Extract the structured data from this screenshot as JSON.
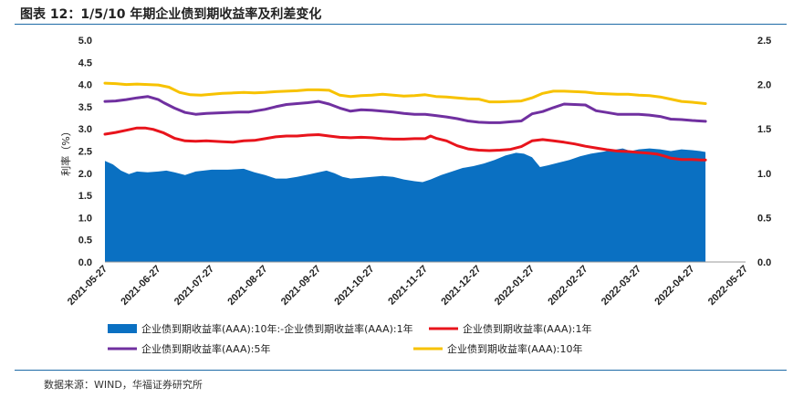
{
  "header": {
    "title": "图表 12：1/5/10 年期企业债到期收益率及利差变化"
  },
  "footer": {
    "source": "数据来源：WIND，华福证券研究所"
  },
  "colors": {
    "spread": "#0a70c2",
    "y1": "#e8141c",
    "y5": "#7030a0",
    "y10": "#f7c200",
    "rule": "#1d6aa6"
  },
  "chart_data": {
    "type": "area+line",
    "title": "1/5/10 年期企业债到期收益率及利差变化",
    "ylabel": "利率（%）",
    "ylim": [
      0,
      5
    ],
    "y_ticks": [
      "0.0",
      "0.5",
      "1.0",
      "1.5",
      "2.0",
      "2.5",
      "3.0",
      "3.5",
      "4.0",
      "4.5",
      "5.0"
    ],
    "y2lim": [
      0,
      2.5
    ],
    "y2_ticks": [
      "0.0",
      "0.5",
      "1.0",
      "1.5",
      "2.0",
      "2.5"
    ],
    "x_tick_labels": [
      "2021-05-27",
      "2021-06-27",
      "2021-07-27",
      "2021-08-27",
      "2021-09-27",
      "2021-10-27",
      "2021-11-27",
      "2021-12-27",
      "2022-01-27",
      "2022-02-27",
      "2022-03-27",
      "2022-04-27",
      "2022-05-27"
    ],
    "legend_position": "bottom",
    "series": [
      {
        "name": "企业债到期收益率(AAA):10年:-企业债到期收益率(AAA):1年",
        "type": "area",
        "axis": "right",
        "color": "#0a70c2",
        "points": [
          [
            0,
            1.14
          ],
          [
            0.15,
            1.1
          ],
          [
            0.3,
            1.03
          ],
          [
            0.45,
            0.99
          ],
          [
            0.6,
            1.02
          ],
          [
            0.8,
            1.01
          ],
          [
            1.0,
            1.02
          ],
          [
            1.15,
            1.03
          ],
          [
            1.3,
            1.01
          ],
          [
            1.5,
            0.98
          ],
          [
            1.7,
            1.02
          ],
          [
            2.0,
            1.04
          ],
          [
            2.3,
            1.04
          ],
          [
            2.6,
            1.05
          ],
          [
            2.8,
            1.01
          ],
          [
            3.0,
            0.98
          ],
          [
            3.2,
            0.94
          ],
          [
            3.4,
            0.94
          ],
          [
            3.6,
            0.96
          ],
          [
            3.85,
            0.99
          ],
          [
            4.0,
            1.01
          ],
          [
            4.15,
            1.03
          ],
          [
            4.3,
            1.0
          ],
          [
            4.45,
            0.96
          ],
          [
            4.6,
            0.94
          ],
          [
            4.8,
            0.95
          ],
          [
            5.0,
            0.96
          ],
          [
            5.2,
            0.97
          ],
          [
            5.4,
            0.96
          ],
          [
            5.6,
            0.93
          ],
          [
            5.8,
            0.91
          ],
          [
            5.95,
            0.9
          ],
          [
            6.1,
            0.93
          ],
          [
            6.3,
            0.98
          ],
          [
            6.5,
            1.02
          ],
          [
            6.7,
            1.06
          ],
          [
            6.9,
            1.08
          ],
          [
            7.1,
            1.11
          ],
          [
            7.3,
            1.15
          ],
          [
            7.5,
            1.2
          ],
          [
            7.7,
            1.23
          ],
          [
            7.85,
            1.22
          ],
          [
            8.0,
            1.18
          ],
          [
            8.15,
            1.07
          ],
          [
            8.3,
            1.09
          ],
          [
            8.5,
            1.12
          ],
          [
            8.7,
            1.15
          ],
          [
            8.9,
            1.19
          ],
          [
            9.1,
            1.22
          ],
          [
            9.3,
            1.24
          ],
          [
            9.5,
            1.26
          ],
          [
            9.7,
            1.28
          ],
          [
            9.85,
            1.25
          ],
          [
            10.0,
            1.27
          ],
          [
            10.2,
            1.28
          ],
          [
            10.4,
            1.27
          ],
          [
            10.6,
            1.25
          ],
          [
            10.8,
            1.27
          ],
          [
            11.0,
            1.26
          ],
          [
            11.15,
            1.25
          ],
          [
            11.25,
            1.24
          ]
        ]
      },
      {
        "name": "企业债到期收益率(AAA):1年",
        "type": "line",
        "axis": "left",
        "color": "#e8141c",
        "points": [
          [
            0,
            2.88
          ],
          [
            0.2,
            2.92
          ],
          [
            0.4,
            2.97
          ],
          [
            0.6,
            3.02
          ],
          [
            0.75,
            3.02
          ],
          [
            0.9,
            2.99
          ],
          [
            1.1,
            2.91
          ],
          [
            1.3,
            2.79
          ],
          [
            1.5,
            2.73
          ],
          [
            1.7,
            2.72
          ],
          [
            1.9,
            2.73
          ],
          [
            2.2,
            2.71
          ],
          [
            2.4,
            2.7
          ],
          [
            2.6,
            2.73
          ],
          [
            2.8,
            2.74
          ],
          [
            3.0,
            2.78
          ],
          [
            3.2,
            2.82
          ],
          [
            3.4,
            2.84
          ],
          [
            3.6,
            2.84
          ],
          [
            3.8,
            2.86
          ],
          [
            4.0,
            2.87
          ],
          [
            4.2,
            2.84
          ],
          [
            4.4,
            2.81
          ],
          [
            4.6,
            2.8
          ],
          [
            4.8,
            2.81
          ],
          [
            5.0,
            2.8
          ],
          [
            5.2,
            2.78
          ],
          [
            5.4,
            2.77
          ],
          [
            5.6,
            2.77
          ],
          [
            5.8,
            2.78
          ],
          [
            6.0,
            2.78
          ],
          [
            6.1,
            2.84
          ],
          [
            6.2,
            2.79
          ],
          [
            6.4,
            2.73
          ],
          [
            6.6,
            2.62
          ],
          [
            6.8,
            2.55
          ],
          [
            7.0,
            2.52
          ],
          [
            7.2,
            2.51
          ],
          [
            7.4,
            2.52
          ],
          [
            7.6,
            2.54
          ],
          [
            7.8,
            2.6
          ],
          [
            8.0,
            2.73
          ],
          [
            8.2,
            2.76
          ],
          [
            8.4,
            2.73
          ],
          [
            8.6,
            2.7
          ],
          [
            8.8,
            2.66
          ],
          [
            9.0,
            2.61
          ],
          [
            9.2,
            2.57
          ],
          [
            9.4,
            2.53
          ],
          [
            9.6,
            2.5
          ],
          [
            9.8,
            2.49
          ],
          [
            10.0,
            2.47
          ],
          [
            10.2,
            2.45
          ],
          [
            10.35,
            2.43
          ],
          [
            10.5,
            2.38
          ],
          [
            10.6,
            2.34
          ],
          [
            10.8,
            2.31
          ],
          [
            11.0,
            2.31
          ],
          [
            11.15,
            2.3
          ],
          [
            11.25,
            2.3
          ]
        ]
      },
      {
        "name": "企业债到期收益率(AAA):5年",
        "type": "line",
        "axis": "left",
        "color": "#7030a0",
        "points": [
          [
            0,
            3.62
          ],
          [
            0.2,
            3.63
          ],
          [
            0.4,
            3.66
          ],
          [
            0.6,
            3.7
          ],
          [
            0.8,
            3.73
          ],
          [
            1.0,
            3.66
          ],
          [
            1.1,
            3.59
          ],
          [
            1.3,
            3.47
          ],
          [
            1.5,
            3.37
          ],
          [
            1.7,
            3.33
          ],
          [
            1.9,
            3.35
          ],
          [
            2.1,
            3.36
          ],
          [
            2.3,
            3.37
          ],
          [
            2.5,
            3.38
          ],
          [
            2.7,
            3.38
          ],
          [
            3.0,
            3.44
          ],
          [
            3.2,
            3.5
          ],
          [
            3.4,
            3.55
          ],
          [
            3.6,
            3.57
          ],
          [
            3.8,
            3.59
          ],
          [
            4.0,
            3.62
          ],
          [
            4.2,
            3.56
          ],
          [
            4.4,
            3.47
          ],
          [
            4.6,
            3.4
          ],
          [
            4.8,
            3.43
          ],
          [
            5.0,
            3.42
          ],
          [
            5.2,
            3.4
          ],
          [
            5.4,
            3.38
          ],
          [
            5.6,
            3.35
          ],
          [
            5.8,
            3.33
          ],
          [
            6.0,
            3.33
          ],
          [
            6.2,
            3.3
          ],
          [
            6.4,
            3.27
          ],
          [
            6.6,
            3.23
          ],
          [
            6.8,
            3.18
          ],
          [
            7.0,
            3.15
          ],
          [
            7.2,
            3.14
          ],
          [
            7.4,
            3.14
          ],
          [
            7.6,
            3.16
          ],
          [
            7.8,
            3.18
          ],
          [
            8.0,
            3.34
          ],
          [
            8.2,
            3.39
          ],
          [
            8.4,
            3.48
          ],
          [
            8.6,
            3.56
          ],
          [
            8.8,
            3.55
          ],
          [
            9.0,
            3.54
          ],
          [
            9.2,
            3.41
          ],
          [
            9.4,
            3.37
          ],
          [
            9.6,
            3.33
          ],
          [
            9.8,
            3.33
          ],
          [
            10.0,
            3.33
          ],
          [
            10.2,
            3.31
          ],
          [
            10.4,
            3.28
          ],
          [
            10.6,
            3.22
          ],
          [
            10.8,
            3.21
          ],
          [
            11.0,
            3.19
          ],
          [
            11.25,
            3.17
          ]
        ]
      },
      {
        "name": "企业债到期收益率(AAA):10年",
        "type": "line",
        "axis": "left",
        "color": "#f7c200",
        "points": [
          [
            0,
            4.03
          ],
          [
            0.2,
            4.02
          ],
          [
            0.4,
            4.0
          ],
          [
            0.6,
            4.01
          ],
          [
            0.8,
            4.0
          ],
          [
            1.0,
            3.99
          ],
          [
            1.2,
            3.94
          ],
          [
            1.4,
            3.82
          ],
          [
            1.6,
            3.77
          ],
          [
            1.8,
            3.76
          ],
          [
            2.0,
            3.78
          ],
          [
            2.2,
            3.8
          ],
          [
            2.4,
            3.81
          ],
          [
            2.6,
            3.82
          ],
          [
            2.8,
            3.81
          ],
          [
            3.0,
            3.82
          ],
          [
            3.2,
            3.84
          ],
          [
            3.4,
            3.85
          ],
          [
            3.6,
            3.86
          ],
          [
            3.8,
            3.88
          ],
          [
            4.0,
            3.88
          ],
          [
            4.2,
            3.87
          ],
          [
            4.4,
            3.76
          ],
          [
            4.6,
            3.73
          ],
          [
            4.8,
            3.75
          ],
          [
            5.0,
            3.76
          ],
          [
            5.2,
            3.78
          ],
          [
            5.4,
            3.76
          ],
          [
            5.6,
            3.74
          ],
          [
            5.8,
            3.75
          ],
          [
            6.0,
            3.77
          ],
          [
            6.2,
            3.73
          ],
          [
            6.4,
            3.72
          ],
          [
            6.6,
            3.7
          ],
          [
            6.8,
            3.68
          ],
          [
            7.0,
            3.67
          ],
          [
            7.2,
            3.61
          ],
          [
            7.4,
            3.61
          ],
          [
            7.6,
            3.62
          ],
          [
            7.8,
            3.63
          ],
          [
            8.0,
            3.7
          ],
          [
            8.2,
            3.8
          ],
          [
            8.4,
            3.85
          ],
          [
            8.6,
            3.85
          ],
          [
            8.8,
            3.84
          ],
          [
            9.0,
            3.83
          ],
          [
            9.2,
            3.8
          ],
          [
            9.4,
            3.79
          ],
          [
            9.6,
            3.78
          ],
          [
            9.8,
            3.78
          ],
          [
            10.0,
            3.76
          ],
          [
            10.2,
            3.75
          ],
          [
            10.4,
            3.72
          ],
          [
            10.6,
            3.67
          ],
          [
            10.8,
            3.62
          ],
          [
            11.0,
            3.6
          ],
          [
            11.25,
            3.57
          ]
        ]
      }
    ]
  }
}
